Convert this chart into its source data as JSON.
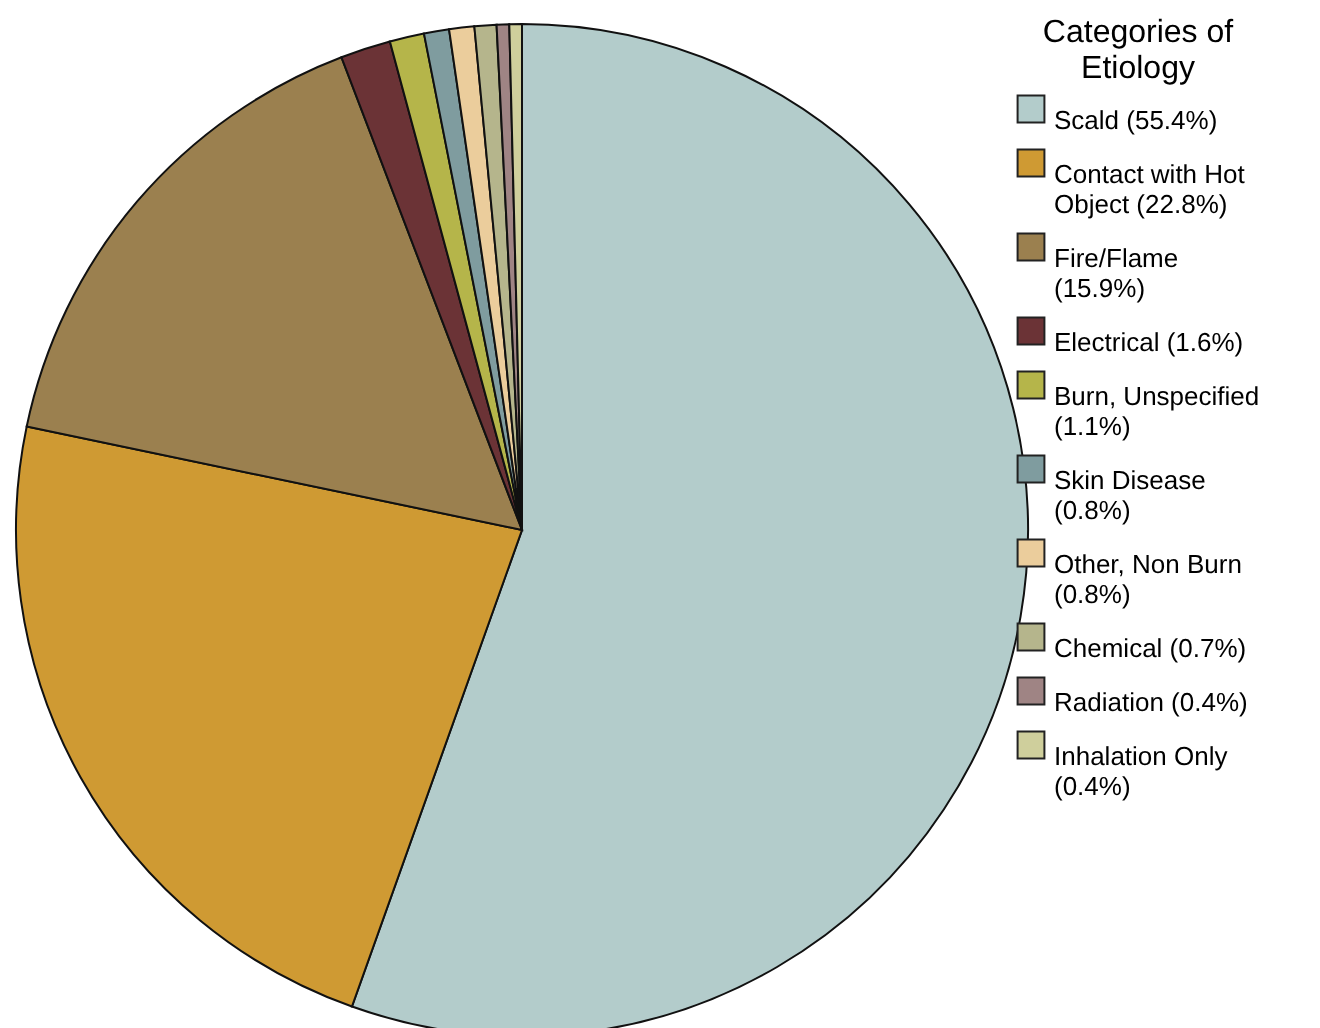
{
  "chart_data": {
    "type": "pie",
    "legend_title": "Categories of Etiology",
    "legend": "right",
    "categories": [
      "Scald (55.4%)",
      "Contact with Hot Object (22.8%)",
      "Fire/Flame (15.9%)",
      "Electrical (1.6%)",
      "Burn, Unspecified (1.1%)",
      "Skin Disease (0.8%)",
      "Other, Non Burn (0.8%)",
      "Chemical (0.7%)",
      "Radiation (0.4%)",
      "Inhalation Only (0.4%)"
    ],
    "values": [
      55.4,
      22.8,
      15.9,
      1.6,
      1.1,
      0.8,
      0.8,
      0.7,
      0.4,
      0.4
    ],
    "colors": [
      "#b3cccb",
      "#cf9a33",
      "#9b804f",
      "#6b3336",
      "#b5b54a",
      "#7f9c9f",
      "#ebcd9c",
      "#b5b58c",
      "#9f8484",
      "#cfcf9c"
    ]
  }
}
